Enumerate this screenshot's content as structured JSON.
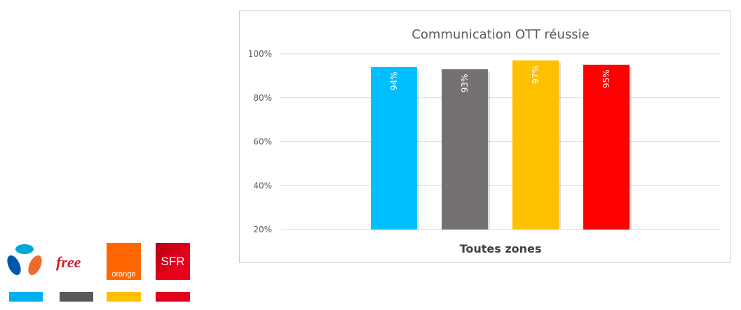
{
  "chart_data": {
    "type": "bar",
    "title": "Communication OTT réussie",
    "categories": [
      "Toutes zones"
    ],
    "xlabel": "",
    "ylabel": "",
    "ylim": [
      20,
      100
    ],
    "yticks": [
      "20%",
      "40%",
      "60%",
      "80%",
      "100%"
    ],
    "grid": true,
    "series": [
      {
        "values": [
          94
        ],
        "label": "94%",
        "color": "#00BFFF"
      },
      {
        "values": [
          93
        ],
        "label": "93%",
        "color": "#767171"
      },
      {
        "values": [
          97
        ],
        "label": "97%",
        "color": "#FFC000"
      },
      {
        "values": [
          95
        ],
        "label": "95%",
        "color": "#FF0000"
      }
    ]
  },
  "legend": {
    "operators": [
      {
        "logo": "bouygues-logo",
        "color": "#00B0F0"
      },
      {
        "logo": "free-logo",
        "text": "free",
        "color": "#595959"
      },
      {
        "logo": "orange-logo",
        "text": "orange",
        "color": "#FFC000"
      },
      {
        "logo": "sfr-logo",
        "text": "SFR",
        "color": "#E2001A"
      }
    ]
  }
}
